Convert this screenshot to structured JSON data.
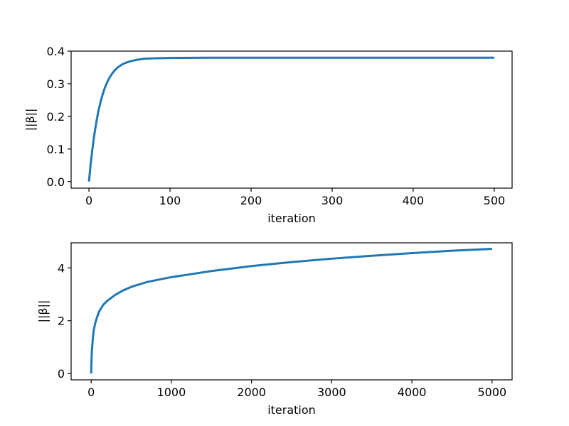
{
  "colors": {
    "line": "#1f77b4",
    "background": "#ffffff",
    "axes": "#000000"
  },
  "chart_data": [
    {
      "type": "line",
      "xlabel": "iteration",
      "ylabel": "||β||",
      "xlim": [
        -22,
        522
      ],
      "ylim": [
        -0.02,
        0.4
      ],
      "xticks": [
        0,
        100,
        200,
        300,
        400,
        500
      ],
      "xtick_labels": [
        "0",
        "100",
        "200",
        "300",
        "400",
        "500"
      ],
      "yticks": [
        0.0,
        0.1,
        0.2,
        0.3,
        0.4
      ],
      "ytick_labels": [
        "0.0",
        "0.1",
        "0.2",
        "0.3",
        "0.4"
      ],
      "grid": false,
      "series": [
        {
          "x": [
            0,
            2,
            4,
            6,
            8,
            10,
            12,
            14,
            16,
            18,
            20,
            22,
            25,
            28,
            31,
            35,
            40,
            45,
            50,
            60,
            70,
            80,
            100,
            150,
            200,
            250,
            300,
            350,
            400,
            450,
            500
          ],
          "values": [
            0,
            0.051,
            0.095,
            0.133,
            0.166,
            0.195,
            0.22,
            0.241,
            0.26,
            0.276,
            0.29,
            0.302,
            0.317,
            0.329,
            0.339,
            0.349,
            0.358,
            0.364,
            0.368,
            0.374,
            0.377,
            0.378,
            0.379,
            0.38,
            0.38,
            0.38,
            0.38,
            0.38,
            0.38,
            0.38,
            0.38
          ]
        }
      ]
    },
    {
      "type": "line",
      "xlabel": "iteration",
      "ylabel": "||β||",
      "xlim": [
        -250,
        5250
      ],
      "ylim": [
        -0.24,
        4.95
      ],
      "xticks": [
        0,
        1000,
        2000,
        3000,
        4000,
        5000
      ],
      "xtick_labels": [
        "0",
        "1000",
        "2000",
        "3000",
        "4000",
        "5000"
      ],
      "yticks": [
        0,
        2,
        4
      ],
      "ytick_labels": [
        "0",
        "2",
        "4"
      ],
      "grid": false,
      "series": [
        {
          "x": [
            0,
            5,
            10,
            20,
            30,
            50,
            75,
            100,
            150,
            200,
            300,
            400,
            500,
            700,
            1000,
            1500,
            2000,
            2500,
            3000,
            3500,
            4000,
            4500,
            5000
          ],
          "values": [
            0,
            0.6,
            0.9,
            1.3,
            1.6,
            1.9,
            2.15,
            2.35,
            2.6,
            2.75,
            2.98,
            3.15,
            3.28,
            3.47,
            3.65,
            3.88,
            4.07,
            4.22,
            4.35,
            4.46,
            4.56,
            4.65,
            4.72
          ]
        }
      ]
    }
  ]
}
